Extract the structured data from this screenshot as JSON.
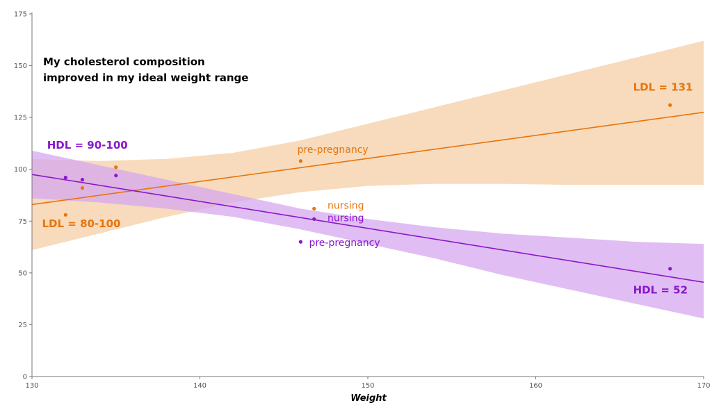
{
  "chart_data": {
    "type": "scatter",
    "title_lines": [
      "My cholesterol composition",
      "improved in my ideal weight range"
    ],
    "xlabel": "Weight",
    "ylabel": "",
    "xlim": [
      130,
      170
    ],
    "ylim": [
      0,
      175
    ],
    "x_ticks": [
      130,
      140,
      150,
      160,
      170
    ],
    "y_ticks": [
      0,
      25,
      50,
      75,
      100,
      125,
      150,
      175
    ],
    "grid": false,
    "series": [
      {
        "key": "ldl",
        "color": "#e8740c",
        "band_color": "#f6cfa6",
        "points": [
          {
            "x": 132,
            "y": 78
          },
          {
            "x": 133,
            "y": 91
          },
          {
            "x": 135,
            "y": 101
          },
          {
            "x": 146,
            "y": 104
          },
          {
            "x": 146.8,
            "y": 81
          },
          {
            "x": 168,
            "y": 131
          }
        ],
        "trend": {
          "x": [
            130,
            170
          ],
          "y": [
            83,
            127.5
          ]
        },
        "band": {
          "x": [
            130,
            134,
            138,
            142,
            146,
            150,
            154,
            158,
            162,
            166,
            170
          ],
          "upper": [
            105,
            104,
            105,
            108,
            114,
            122,
            130,
            138,
            146,
            154,
            162
          ],
          "lower": [
            61,
            69,
            77,
            84,
            89,
            92,
            93,
            93,
            92.5,
            92.5,
            92.5
          ]
        }
      },
      {
        "key": "hdl",
        "color": "#8a16cc",
        "band_color": "#d5a8ef",
        "points": [
          {
            "x": 132,
            "y": 96
          },
          {
            "x": 133,
            "y": 95
          },
          {
            "x": 135,
            "y": 97
          },
          {
            "x": 146,
            "y": 65
          },
          {
            "x": 146.8,
            "y": 76
          },
          {
            "x": 168,
            "y": 52
          }
        ],
        "trend": {
          "x": [
            130,
            170
          ],
          "y": [
            97.5,
            45.5
          ]
        },
        "band": {
          "x": [
            130,
            134,
            138,
            142,
            146,
            150,
            154,
            158,
            162,
            166,
            170
          ],
          "upper": [
            109,
            102,
            95,
            88,
            81,
            76,
            72,
            69,
            67,
            65,
            64
          ],
          "lower": [
            86,
            84,
            81,
            77,
            71,
            64,
            57,
            49,
            42,
            35,
            28
          ]
        }
      }
    ],
    "annotations": [
      {
        "text": "LDL = 131",
        "x": 165.8,
        "y": 138,
        "series": "ldl",
        "bold": true
      },
      {
        "text": "LDL = 80-100",
        "x": 130.6,
        "y": 72,
        "series": "ldl",
        "bold": true
      },
      {
        "text": "pre-pregnancy",
        "x": 145.8,
        "y": 108,
        "series": "ldl",
        "bold": false
      },
      {
        "text": "nursing",
        "x": 147.6,
        "y": 81,
        "series": "ldl",
        "bold": false
      },
      {
        "text": "HDL = 90-100",
        "x": 130.9,
        "y": 110,
        "series": "hdl",
        "bold": true
      },
      {
        "text": "nursing",
        "x": 147.6,
        "y": 75,
        "series": "hdl",
        "bold": false
      },
      {
        "text": "pre-pregnancy",
        "x": 146.5,
        "y": 63,
        "series": "hdl",
        "bold": false
      },
      {
        "text": "HDL = 52",
        "x": 165.8,
        "y": 40,
        "series": "hdl",
        "bold": true
      }
    ]
  }
}
